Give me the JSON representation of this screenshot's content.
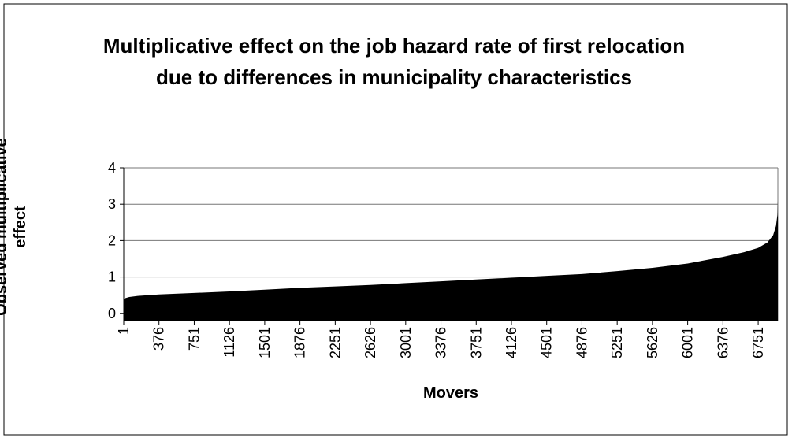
{
  "chart_data": {
    "type": "area",
    "title": "Multiplicative effect on the job hazard rate of first relocation due to differences in municipality characteristics",
    "x_label": "Movers",
    "y_label": "Observed multiplicative effect",
    "x": [
      1,
      20,
      60,
      150,
      376,
      751,
      1126,
      1501,
      1876,
      2251,
      2626,
      3001,
      3376,
      3751,
      4126,
      4501,
      4876,
      5251,
      5626,
      6001,
      6376,
      6600,
      6751,
      6850,
      6910,
      6940,
      6955,
      6960
    ],
    "values": [
      0.38,
      0.42,
      0.45,
      0.48,
      0.52,
      0.56,
      0.6,
      0.65,
      0.7,
      0.74,
      0.78,
      0.83,
      0.88,
      0.93,
      0.98,
      1.03,
      1.08,
      1.16,
      1.25,
      1.37,
      1.55,
      1.68,
      1.8,
      1.95,
      2.15,
      2.4,
      2.7,
      3.1
    ],
    "color": "#000000",
    "xlim": [
      1,
      6960
    ],
    "xticks": [
      1,
      376,
      751,
      1126,
      1501,
      1876,
      2251,
      2626,
      3001,
      3376,
      3751,
      4126,
      4501,
      4876,
      5251,
      5626,
      6001,
      6376,
      6751
    ],
    "ylim": [
      -0.2,
      4
    ],
    "yticks": [
      0,
      1,
      2,
      3,
      4
    ],
    "grid": true
  }
}
